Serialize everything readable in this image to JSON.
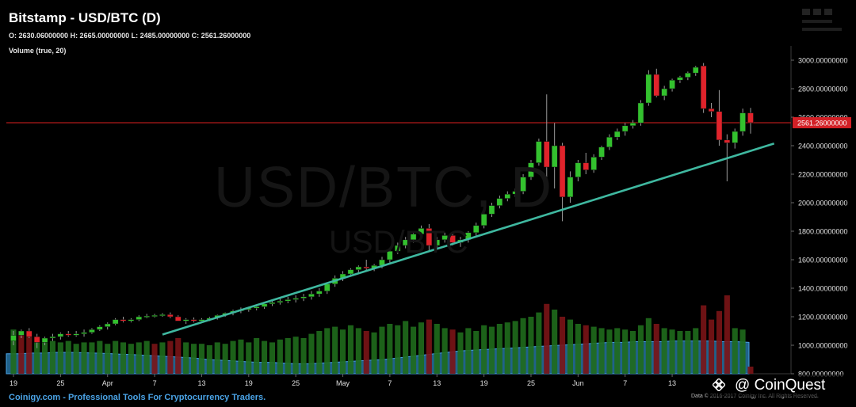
{
  "header": {
    "title": "Bitstamp - USD/BTC (D)",
    "ohlc": "O: 2630.06000000 H: 2665.00000000 L: 2485.00000000 C: 2561.26000000",
    "volume_label": "Volume (true, 20)"
  },
  "watermark": {
    "pair_large": "USD/BTC, D",
    "pair_small": "USD/BTC"
  },
  "footer": {
    "tagline": "Coinigy.com - Professional Tools For Cryptocurrency Traders.",
    "copyright": "Data © 2016-2017 Coinigy Inc. All Rights Reserved."
  },
  "brand": {
    "text": "@ CoinQuest",
    "icon": "binance-diamond-icon"
  },
  "colors": {
    "up": "#33c12e",
    "down": "#e0232b",
    "trendline": "#3fb8a0",
    "price_line": "#b01a1a",
    "volume_area": "#2b83ba"
  },
  "chart_data": {
    "type": "candlestick",
    "y_range": [
      800,
      3100
    ],
    "y_ticks": [
      "3000.00000000",
      "2800.00000000",
      "2600.00000000",
      "2400.00000000",
      "2200.00000000",
      "2000.00000000",
      "1800.00000000",
      "1600.00000000",
      "1400.00000000",
      "1200.00000000",
      "1000.00000000",
      "800.00000000"
    ],
    "x_ticks": [
      "19",
      "25",
      "Apr",
      "7",
      "13",
      "19",
      "25",
      "May",
      "7",
      "13",
      "19",
      "25",
      "Jun",
      "7",
      "13"
    ],
    "last_price_label": "2561.26000000",
    "last_price": 2561.26,
    "candles": [
      [
        1030,
        1100,
        1000,
        1070
      ],
      [
        1070,
        1110,
        1050,
        1100
      ],
      [
        1100,
        1120,
        1050,
        1060
      ],
      [
        1060,
        1080,
        980,
        1020
      ],
      [
        1020,
        1060,
        1000,
        1050
      ],
      [
        1050,
        1080,
        1030,
        1060
      ],
      [
        1060,
        1090,
        1040,
        1080
      ],
      [
        1080,
        1100,
        1060,
        1070
      ],
      [
        1070,
        1100,
        1060,
        1080
      ],
      [
        1080,
        1110,
        1060,
        1090
      ],
      [
        1090,
        1120,
        1080,
        1110
      ],
      [
        1110,
        1140,
        1100,
        1130
      ],
      [
        1130,
        1160,
        1110,
        1150
      ],
      [
        1150,
        1190,
        1140,
        1180
      ],
      [
        1180,
        1200,
        1160,
        1170
      ],
      [
        1170,
        1190,
        1160,
        1180
      ],
      [
        1180,
        1210,
        1170,
        1200
      ],
      [
        1200,
        1220,
        1190,
        1205
      ],
      [
        1205,
        1220,
        1195,
        1210
      ],
      [
        1210,
        1225,
        1200,
        1215
      ],
      [
        1215,
        1230,
        1190,
        1200
      ],
      [
        1200,
        1210,
        1180,
        1170
      ],
      [
        1170,
        1190,
        1150,
        1180
      ],
      [
        1180,
        1195,
        1160,
        1170
      ],
      [
        1170,
        1190,
        1160,
        1180
      ],
      [
        1180,
        1200,
        1170,
        1190
      ],
      [
        1190,
        1215,
        1180,
        1210
      ],
      [
        1210,
        1230,
        1200,
        1225
      ],
      [
        1225,
        1250,
        1210,
        1240
      ],
      [
        1240,
        1265,
        1225,
        1250
      ],
      [
        1250,
        1270,
        1235,
        1260
      ],
      [
        1260,
        1285,
        1245,
        1270
      ],
      [
        1270,
        1300,
        1255,
        1290
      ],
      [
        1290,
        1320,
        1275,
        1300
      ],
      [
        1300,
        1330,
        1285,
        1310
      ],
      [
        1310,
        1340,
        1295,
        1320
      ],
      [
        1320,
        1350,
        1300,
        1330
      ],
      [
        1330,
        1360,
        1310,
        1340
      ],
      [
        1340,
        1380,
        1320,
        1360
      ],
      [
        1360,
        1400,
        1340,
        1380
      ],
      [
        1380,
        1440,
        1360,
        1430
      ],
      [
        1430,
        1490,
        1410,
        1470
      ],
      [
        1470,
        1520,
        1450,
        1500
      ],
      [
        1500,
        1540,
        1480,
        1530
      ],
      [
        1530,
        1560,
        1510,
        1550
      ],
      [
        1550,
        1600,
        1520,
        1540
      ],
      [
        1540,
        1570,
        1520,
        1560
      ],
      [
        1560,
        1620,
        1540,
        1600
      ],
      [
        1600,
        1680,
        1580,
        1660
      ],
      [
        1660,
        1720,
        1640,
        1700
      ],
      [
        1700,
        1760,
        1680,
        1740
      ],
      [
        1740,
        1800,
        1720,
        1780
      ],
      [
        1780,
        1840,
        1760,
        1820
      ],
      [
        1820,
        1850,
        1660,
        1700
      ],
      [
        1700,
        1760,
        1680,
        1740
      ],
      [
        1740,
        1790,
        1720,
        1770
      ],
      [
        1770,
        1790,
        1700,
        1720
      ],
      [
        1720,
        1760,
        1690,
        1740
      ],
      [
        1740,
        1800,
        1720,
        1790
      ],
      [
        1790,
        1860,
        1770,
        1840
      ],
      [
        1840,
        1930,
        1820,
        1920
      ],
      [
        1920,
        2000,
        1900,
        1980
      ],
      [
        1980,
        2050,
        1960,
        2030
      ],
      [
        2030,
        2080,
        2010,
        2060
      ],
      [
        2060,
        2100,
        2040,
        2080
      ],
      [
        2080,
        2200,
        2060,
        2180
      ],
      [
        2180,
        2300,
        2160,
        2280
      ],
      [
        2280,
        2450,
        2260,
        2430
      ],
      [
        2430,
        2760,
        2180,
        2250
      ],
      [
        2250,
        2560,
        2100,
        2400
      ],
      [
        2400,
        2420,
        1870,
        2040
      ],
      [
        2040,
        2220,
        2000,
        2180
      ],
      [
        2180,
        2300,
        2150,
        2280
      ],
      [
        2280,
        2350,
        2200,
        2230
      ],
      [
        2230,
        2340,
        2210,
        2320
      ],
      [
        2320,
        2400,
        2300,
        2390
      ],
      [
        2390,
        2480,
        2370,
        2460
      ],
      [
        2460,
        2520,
        2440,
        2500
      ],
      [
        2500,
        2560,
        2470,
        2540
      ],
      [
        2540,
        2580,
        2520,
        2560
      ],
      [
        2560,
        2720,
        2540,
        2700
      ],
      [
        2700,
        2930,
        2680,
        2900
      ],
      [
        2900,
        2940,
        2740,
        2750
      ],
      [
        2750,
        2820,
        2720,
        2800
      ],
      [
        2800,
        2870,
        2780,
        2860
      ],
      [
        2860,
        2890,
        2840,
        2880
      ],
      [
        2880,
        2920,
        2860,
        2910
      ],
      [
        2910,
        2960,
        2890,
        2950
      ],
      [
        2960,
        2980,
        2630,
        2660
      ],
      [
        2660,
        2700,
        2600,
        2640
      ],
      [
        2640,
        2790,
        2400,
        2440
      ],
      [
        2440,
        2480,
        2150,
        2420
      ],
      [
        2420,
        2520,
        2380,
        2500
      ],
      [
        2500,
        2660,
        2470,
        2630
      ],
      [
        2630,
        2665,
        2485,
        2561
      ]
    ],
    "volume_bars": [
      [
        "up",
        1110
      ],
      [
        "down",
        1090
      ],
      [
        "down",
        1060
      ],
      [
        "up",
        1050
      ],
      [
        "up",
        1040
      ],
      [
        "up",
        1030
      ],
      [
        "up",
        1020
      ],
      [
        "up",
        1030
      ],
      [
        "up",
        1010
      ],
      [
        "up",
        1020
      ],
      [
        "up",
        1020
      ],
      [
        "up",
        1030
      ],
      [
        "up",
        1010
      ],
      [
        "up",
        1030
      ],
      [
        "up",
        1020
      ],
      [
        "up",
        1010
      ],
      [
        "up",
        1020
      ],
      [
        "up",
        1030
      ],
      [
        "down",
        1010
      ],
      [
        "up",
        1020
      ],
      [
        "down",
        1030
      ],
      [
        "down",
        1050
      ],
      [
        "up",
        1020
      ],
      [
        "up",
        1010
      ],
      [
        "up",
        1010
      ],
      [
        "up",
        1000
      ],
      [
        "up",
        1020
      ],
      [
        "up",
        1010
      ],
      [
        "up",
        1030
      ],
      [
        "up",
        1040
      ],
      [
        "up",
        1020
      ],
      [
        "up",
        1050
      ],
      [
        "up",
        1030
      ],
      [
        "up",
        1020
      ],
      [
        "up",
        1040
      ],
      [
        "up",
        1050
      ],
      [
        "up",
        1060
      ],
      [
        "up",
        1050
      ],
      [
        "up",
        1080
      ],
      [
        "up",
        1100
      ],
      [
        "up",
        1120
      ],
      [
        "up",
        1130
      ],
      [
        "up",
        1110
      ],
      [
        "up",
        1140
      ],
      [
        "up",
        1120
      ],
      [
        "down",
        1100
      ],
      [
        "up",
        1090
      ],
      [
        "up",
        1130
      ],
      [
        "up",
        1150
      ],
      [
        "up",
        1140
      ],
      [
        "up",
        1170
      ],
      [
        "up",
        1130
      ],
      [
        "up",
        1160
      ],
      [
        "down",
        1180
      ],
      [
        "up",
        1150
      ],
      [
        "up",
        1120
      ],
      [
        "down",
        1110
      ],
      [
        "up",
        1090
      ],
      [
        "up",
        1120
      ],
      [
        "up",
        1100
      ],
      [
        "up",
        1140
      ],
      [
        "up",
        1130
      ],
      [
        "up",
        1150
      ],
      [
        "up",
        1160
      ],
      [
        "up",
        1170
      ],
      [
        "up",
        1190
      ],
      [
        "up",
        1200
      ],
      [
        "up",
        1230
      ],
      [
        "down",
        1290
      ],
      [
        "up",
        1250
      ],
      [
        "down",
        1200
      ],
      [
        "up",
        1180
      ],
      [
        "up",
        1150
      ],
      [
        "down",
        1140
      ],
      [
        "up",
        1130
      ],
      [
        "up",
        1120
      ],
      [
        "up",
        1110
      ],
      [
        "up",
        1120
      ],
      [
        "up",
        1110
      ],
      [
        "up",
        1100
      ],
      [
        "up",
        1140
      ],
      [
        "up",
        1190
      ],
      [
        "down",
        1150
      ],
      [
        "up",
        1120
      ],
      [
        "up",
        1110
      ],
      [
        "up",
        1100
      ],
      [
        "up",
        1100
      ],
      [
        "up",
        1120
      ],
      [
        "down",
        1280
      ],
      [
        "down",
        1180
      ],
      [
        "down",
        1240
      ],
      [
        "down",
        1350
      ],
      [
        "up",
        1120
      ],
      [
        "up",
        1110
      ],
      [
        "down",
        850
      ]
    ],
    "volume_area": [
      940,
      940,
      945,
      945,
      950,
      950,
      948,
      945,
      942,
      938,
      935,
      930,
      925,
      920,
      915,
      910,
      900,
      895,
      890,
      885,
      880,
      880,
      875,
      870,
      870,
      875,
      880,
      885,
      890,
      895,
      900,
      910,
      920,
      930,
      940,
      950,
      960,
      965,
      970,
      975,
      980,
      985,
      990,
      995,
      1000,
      1005,
      1010,
      1015,
      1020,
      1020,
      1025,
      1025,
      1025,
      1030,
      1030,
      1030,
      1030,
      1025,
      1025,
      1020
    ],
    "trendline": {
      "from_index": 19,
      "from_value": 1075,
      "to_index": 97,
      "to_value": 2415
    }
  }
}
